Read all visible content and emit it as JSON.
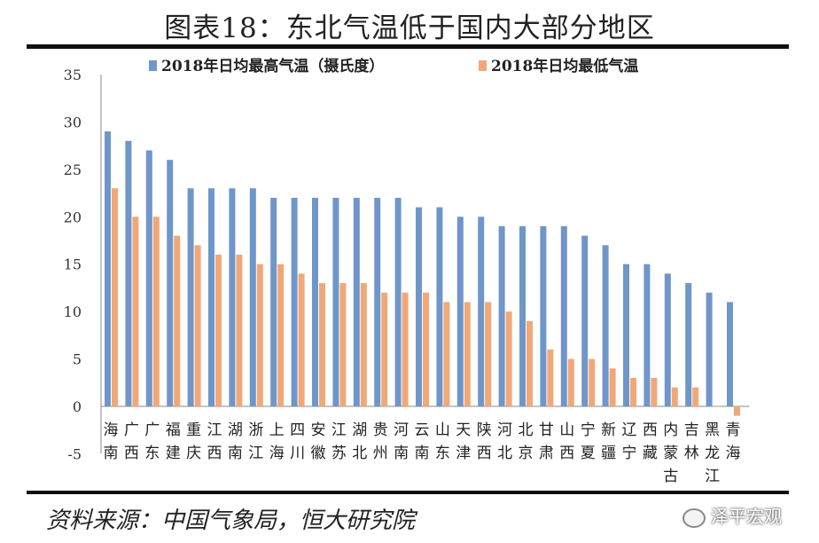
{
  "title": "图表18：东北气温低于国内大部分地区",
  "source": "资料来源：中国气象局，恒大研究院",
  "watermark": "泽平宏观",
  "chart_data": {
    "type": "bar",
    "ylim": [
      -5,
      35
    ],
    "yticks": [
      -5,
      0,
      5,
      10,
      15,
      20,
      25,
      30,
      35
    ],
    "grid": false,
    "legend_position": "top",
    "categories": [
      "海南",
      "广西",
      "广东",
      "福建",
      "重庆",
      "江西",
      "湖南",
      "浙江",
      "上海",
      "四川",
      "安徽",
      "江苏",
      "湖北",
      "贵州",
      "河南",
      "云南",
      "山东",
      "天津",
      "陕西",
      "河北",
      "北京",
      "甘肃",
      "山西",
      "宁夏",
      "新疆",
      "辽宁",
      "西藏",
      "内蒙古",
      "吉林",
      "黑龙江",
      "青海"
    ],
    "series": [
      {
        "name": "2018年日均最高气温（摄氏度）",
        "color": "#6f96c9",
        "values": [
          29,
          28,
          27,
          26,
          23,
          23,
          23,
          23,
          22,
          22,
          22,
          22,
          22,
          22,
          22,
          21,
          21,
          20,
          20,
          19,
          19,
          19,
          19,
          18,
          17,
          15,
          15,
          14,
          13,
          12,
          11
        ]
      },
      {
        "name": "2018年日均最低气温",
        "color": "#f0a878",
        "values": [
          23,
          20,
          20,
          18,
          17,
          16,
          16,
          15,
          15,
          14,
          13,
          13,
          13,
          12,
          12,
          12,
          11,
          11,
          11,
          10,
          9,
          6,
          5,
          5,
          4,
          3,
          3,
          2,
          2,
          0,
          -1
        ]
      }
    ]
  }
}
